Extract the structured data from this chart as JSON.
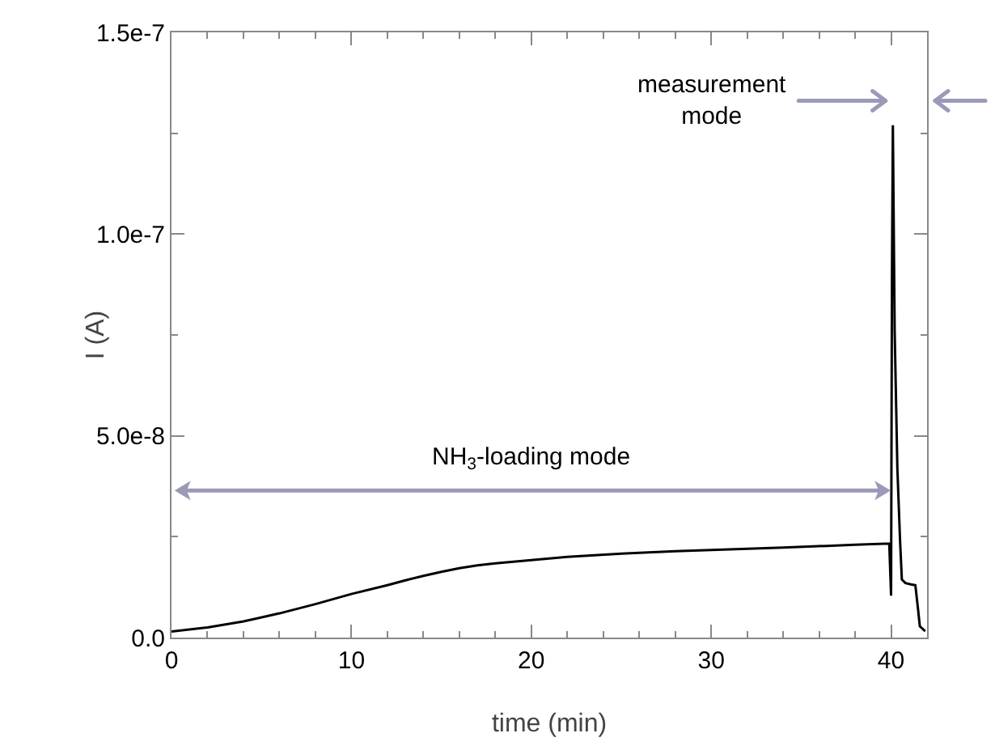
{
  "chart_data": {
    "type": "line",
    "xlabel": "time (min)",
    "ylabel": "I (A)",
    "x": [
      0,
      2,
      4,
      6,
      8,
      10,
      12,
      13,
      14,
      15,
      16,
      17,
      18,
      20,
      22,
      25,
      28,
      30,
      34,
      38,
      39.9,
      40.0,
      40.05,
      40.1,
      40.2,
      40.35,
      40.5,
      40.6,
      40.8,
      41.1,
      41.35,
      41.5,
      41.6,
      41.9
    ],
    "series": [
      {
        "color": "#000000",
        "values": [
          1.5e-09,
          2.5e-09,
          4e-09,
          6e-09,
          8.3e-09,
          1.08e-08,
          1.3e-08,
          1.42e-08,
          1.53e-08,
          1.63e-08,
          1.72e-08,
          1.79e-08,
          1.84e-08,
          1.92e-08,
          2e-08,
          2.08e-08,
          2.14e-08,
          2.17e-08,
          2.23e-08,
          2.3e-08,
          2.33e-08,
          1.04e-08,
          9e-08,
          1.27e-07,
          7.6e-08,
          4.2e-08,
          2.4e-08,
          1.44e-08,
          1.35e-08,
          1.32e-08,
          1.3e-08,
          7e-09,
          2.8e-09,
          1.6e-09
        ]
      }
    ],
    "xlim": [
      0,
      42
    ],
    "ylim": [
      0,
      1.5e-07
    ],
    "xticks": [
      0,
      10,
      20,
      30,
      40
    ],
    "yticks": [
      {
        "value": 0,
        "label": "0.0"
      },
      {
        "value": 5e-08,
        "label": "5.0e-8"
      },
      {
        "value": 1e-07,
        "label": "1.0e-7"
      },
      {
        "value": 1.5e-07,
        "label": "1.5e-7"
      }
    ],
    "annotations": [
      "NH$_{3}$-loading mode",
      "measurement\nmode"
    ],
    "grid": false,
    "marker": "none",
    "line_style": "solid"
  }
}
